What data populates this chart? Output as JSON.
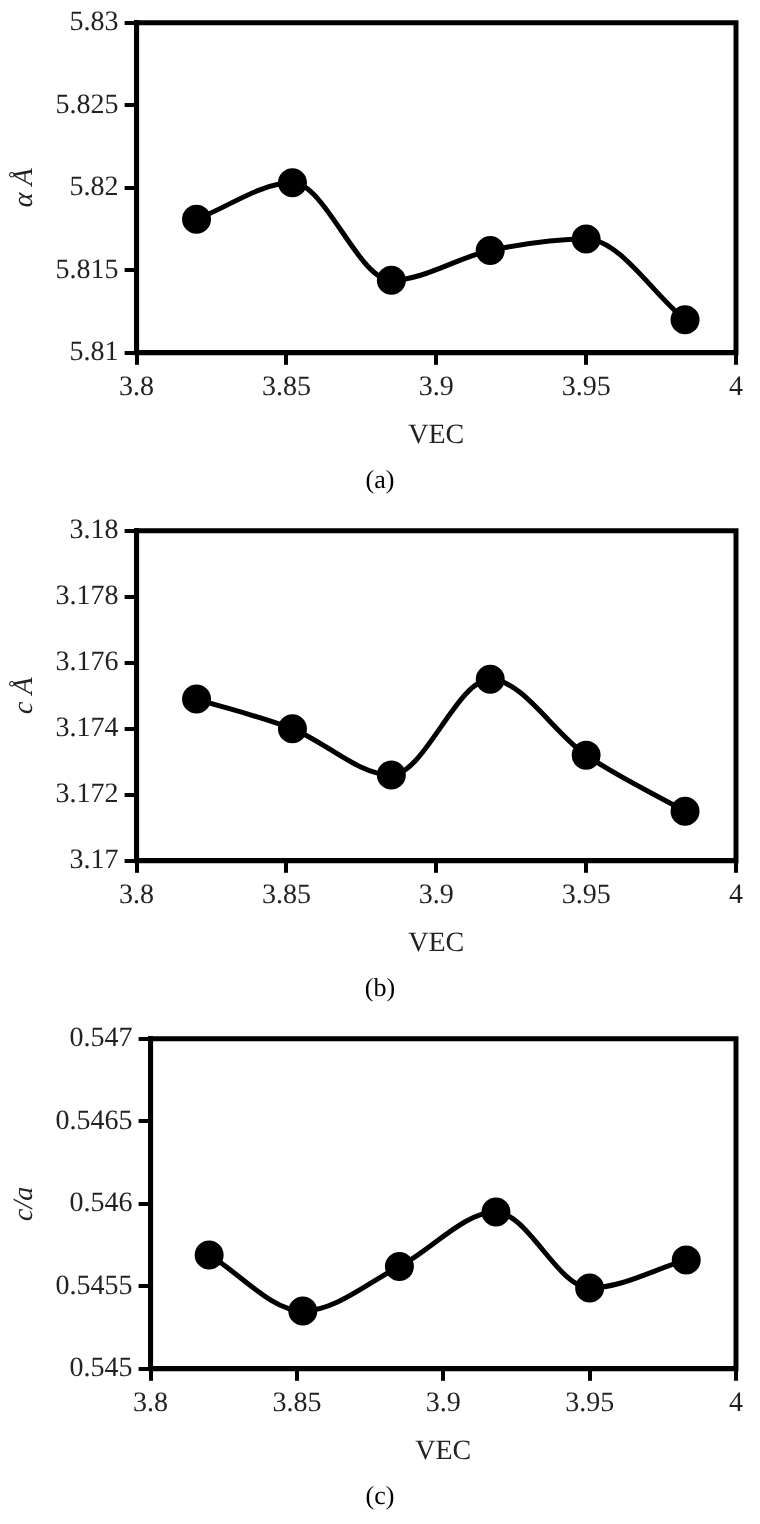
{
  "chart_data": [
    {
      "type": "line",
      "xlabel": "VEC",
      "ylabel": "α Å",
      "annotations": [
        "(a)"
      ],
      "x": [
        3.82,
        3.852,
        3.885,
        3.918,
        3.95,
        3.983
      ],
      "marker": "circle",
      "series": [
        {
          "color": "#000000",
          "values": [
            5.8181,
            5.8203,
            5.8144,
            5.8162,
            5.8169,
            5.812
          ]
        }
      ],
      "xlim": [
        3.8,
        4
      ],
      "xticks": [
        3.8,
        3.85,
        3.9,
        3.95,
        4
      ],
      "ylim": [
        5.81,
        5.83
      ],
      "yticks": [
        5.81,
        5.815,
        5.82,
        5.825,
        5.83
      ]
    },
    {
      "type": "line",
      "xlabel": "VEC",
      "ylabel": "c Å",
      "annotations": [
        "(b)"
      ],
      "x": [
        3.82,
        3.852,
        3.885,
        3.918,
        3.95,
        3.983
      ],
      "marker": "circle",
      "series": [
        {
          "color": "#000000",
          "values": [
            3.1749,
            3.174,
            3.1726,
            3.1755,
            3.1732,
            3.1715
          ]
        }
      ],
      "xlim": [
        3.8,
        4
      ],
      "xticks": [
        3.8,
        3.85,
        3.9,
        3.95,
        4
      ],
      "ylim": [
        3.17,
        3.18
      ],
      "yticks": [
        3.17,
        3.172,
        3.174,
        3.176,
        3.178,
        3.18
      ]
    },
    {
      "type": "line",
      "xlabel": "VEC",
      "ylabel": "c/a",
      "annotations": [
        "(c)"
      ],
      "x": [
        3.82,
        3.852,
        3.885,
        3.918,
        3.95,
        3.983
      ],
      "marker": "circle",
      "series": [
        {
          "color": "#000000",
          "values": [
            0.54569,
            0.54535,
            0.54562,
            0.54595,
            0.54549,
            0.54566
          ]
        }
      ],
      "xlim": [
        3.8,
        4
      ],
      "xticks": [
        3.8,
        3.85,
        3.9,
        3.95,
        4
      ],
      "ylim": [
        0.545,
        0.547
      ],
      "yticks": [
        0.545,
        0.5455,
        0.546,
        0.5465,
        0.547
      ]
    }
  ]
}
